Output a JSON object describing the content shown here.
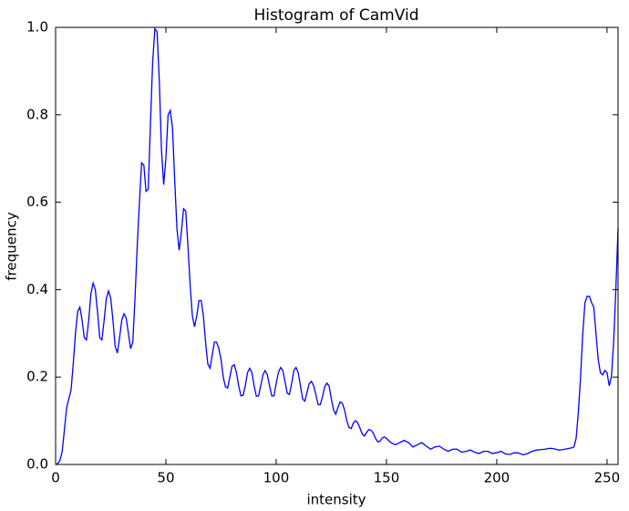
{
  "chart_data": {
    "type": "line",
    "title": "Histogram of CamVid",
    "x_label": "intensity",
    "y_label": "frequency",
    "x": [
      0,
      1,
      2,
      3,
      4,
      5,
      6,
      7,
      8,
      9,
      10,
      11,
      12,
      13,
      14,
      15,
      16,
      17,
      18,
      19,
      20,
      21,
      22,
      23,
      24,
      25,
      26,
      27,
      28,
      29,
      30,
      31,
      32,
      33,
      34,
      35,
      36,
      37,
      38,
      39,
      40,
      41,
      42,
      43,
      44,
      45,
      46,
      47,
      48,
      49,
      50,
      51,
      52,
      53,
      54,
      55,
      56,
      57,
      58,
      59,
      60,
      61,
      62,
      63,
      64,
      65,
      66,
      67,
      68,
      69,
      70,
      71,
      72,
      73,
      74,
      75,
      76,
      77,
      78,
      79,
      80,
      81,
      82,
      83,
      84,
      85,
      86,
      87,
      88,
      89,
      90,
      91,
      92,
      93,
      94,
      95,
      96,
      97,
      98,
      99,
      100,
      101,
      102,
      103,
      104,
      105,
      106,
      107,
      108,
      109,
      110,
      111,
      112,
      113,
      114,
      115,
      116,
      117,
      118,
      119,
      120,
      121,
      122,
      123,
      124,
      125,
      126,
      127,
      128,
      129,
      130,
      131,
      132,
      133,
      134,
      135,
      136,
      137,
      138,
      139,
      140,
      141,
      142,
      143,
      144,
      145,
      146,
      147,
      148,
      149,
      150,
      152,
      154,
      156,
      158,
      160,
      162,
      164,
      166,
      168,
      170,
      172,
      174,
      176,
      178,
      180,
      182,
      184,
      186,
      188,
      190,
      192,
      194,
      196,
      198,
      200,
      202,
      204,
      206,
      208,
      210,
      212,
      214,
      216,
      218,
      220,
      222,
      224,
      226,
      228,
      230,
      232,
      234,
      235,
      236,
      237,
      238,
      239,
      240,
      241,
      242,
      243,
      244,
      245,
      246,
      247,
      248,
      249,
      250,
      251,
      252,
      253,
      254,
      255
    ],
    "series": [
      {
        "color": "#0000ff",
        "values": [
          0,
          0.002,
          0.01,
          0.03,
          0.08,
          0.13,
          0.15,
          0.17,
          0.23,
          0.3,
          0.35,
          0.36,
          0.33,
          0.29,
          0.285,
          0.33,
          0.39,
          0.415,
          0.4,
          0.35,
          0.29,
          0.285,
          0.33,
          0.38,
          0.397,
          0.38,
          0.33,
          0.27,
          0.255,
          0.29,
          0.33,
          0.345,
          0.335,
          0.3,
          0.265,
          0.28,
          0.38,
          0.5,
          0.6,
          0.69,
          0.685,
          0.625,
          0.63,
          0.78,
          0.92,
          0.997,
          0.99,
          0.88,
          0.72,
          0.64,
          0.7,
          0.8,
          0.81,
          0.77,
          0.65,
          0.54,
          0.49,
          0.53,
          0.585,
          0.58,
          0.5,
          0.41,
          0.34,
          0.315,
          0.34,
          0.375,
          0.375,
          0.34,
          0.28,
          0.23,
          0.22,
          0.25,
          0.28,
          0.28,
          0.265,
          0.24,
          0.2,
          0.178,
          0.175,
          0.2,
          0.225,
          0.228,
          0.21,
          0.18,
          0.157,
          0.158,
          0.18,
          0.21,
          0.22,
          0.21,
          0.18,
          0.156,
          0.157,
          0.18,
          0.205,
          0.215,
          0.205,
          0.18,
          0.157,
          0.157,
          0.185,
          0.21,
          0.222,
          0.215,
          0.19,
          0.163,
          0.16,
          0.185,
          0.215,
          0.222,
          0.21,
          0.18,
          0.15,
          0.145,
          0.165,
          0.185,
          0.19,
          0.18,
          0.16,
          0.137,
          0.137,
          0.155,
          0.178,
          0.186,
          0.18,
          0.15,
          0.125,
          0.115,
          0.13,
          0.143,
          0.14,
          0.125,
          0.1,
          0.085,
          0.082,
          0.095,
          0.1,
          0.095,
          0.083,
          0.07,
          0.065,
          0.073,
          0.08,
          0.078,
          0.072,
          0.06,
          0.052,
          0.053,
          0.06,
          0.063,
          0.06,
          0.05,
          0.045,
          0.05,
          0.055,
          0.05,
          0.04,
          0.045,
          0.05,
          0.042,
          0.035,
          0.04,
          0.042,
          0.035,
          0.03,
          0.035,
          0.035,
          0.028,
          0.03,
          0.033,
          0.028,
          0.025,
          0.03,
          0.03,
          0.025,
          0.027,
          0.03,
          0.024,
          0.023,
          0.027,
          0.026,
          0.022,
          0.025,
          0.03,
          0.033,
          0.034,
          0.035,
          0.037,
          0.036,
          0.033,
          0.034,
          0.036,
          0.038,
          0.04,
          0.06,
          0.12,
          0.2,
          0.3,
          0.37,
          0.385,
          0.385,
          0.37,
          0.36,
          0.3,
          0.24,
          0.21,
          0.205,
          0.215,
          0.21,
          0.18,
          0.2,
          0.28,
          0.4,
          0.54
        ]
      }
    ],
    "xlim": [
      0,
      255
    ],
    "xticks": [
      0,
      50,
      100,
      150,
      200,
      250
    ],
    "ylim": [
      0,
      1
    ],
    "yticks": [
      {
        "value": 0,
        "label": "0.0"
      },
      0.2,
      0.4,
      0.6,
      0.8,
      {
        "value": 1,
        "label": "1.0"
      }
    ],
    "grid": false
  }
}
